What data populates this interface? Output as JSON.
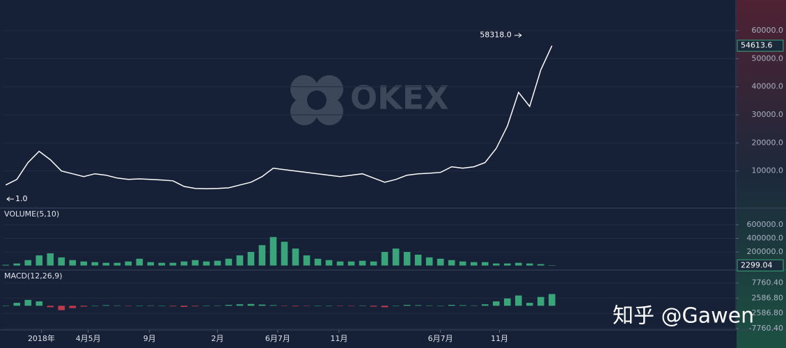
{
  "watermark": "OKEX",
  "signature": "知乎 @Gawen",
  "chart_data": [
    {
      "type": "line",
      "title": "",
      "x": [
        0,
        1,
        2,
        3,
        4,
        5,
        6,
        7,
        8,
        9,
        10,
        11,
        12,
        13,
        14,
        15,
        16,
        17,
        18,
        19,
        20,
        21,
        22,
        23,
        24,
        25,
        26,
        27,
        28,
        29,
        30,
        31,
        32,
        33,
        34,
        35,
        36,
        37,
        38,
        39,
        40,
        41,
        42,
        43,
        44,
        45,
        46,
        47,
        48,
        49
      ],
      "series": [
        {
          "name": "",
          "color": "#ffffff",
          "values": [
            5000,
            7000,
            13000,
            17000,
            14000,
            10000,
            9000,
            8000,
            9000,
            8500,
            7500,
            7000,
            7200,
            7000,
            6800,
            6500,
            4500,
            3800,
            3700,
            3800,
            4000,
            5000,
            6000,
            8000,
            11000,
            10500,
            10000,
            9500,
            9000,
            8500,
            8000,
            8500,
            9000,
            7500,
            6000,
            7000,
            8500,
            9000,
            9200,
            9500,
            11500,
            11000,
            11500,
            13000,
            18000,
            26000,
            38000,
            33000,
            46000,
            54613.6
          ]
        }
      ],
      "xlim": [
        -0.2,
        65.5
      ],
      "ylim": [
        -2970,
        70890
      ],
      "yticks": [
        {
          "value": 10000,
          "label": "10000.0"
        },
        {
          "value": 20000,
          "label": "20000.0"
        },
        {
          "value": 30000,
          "label": "30000.0"
        },
        {
          "value": 40000,
          "label": "40000.0"
        },
        {
          "value": 50000,
          "label": "50000.0"
        },
        {
          "value": 60000,
          "label": "60000.0"
        }
      ],
      "last": {
        "value": 54613.6,
        "label": "54613.6"
      },
      "max": {
        "value": 58318,
        "label": "58318.0"
      },
      "min": {
        "value": 1,
        "label": "1.0"
      }
    },
    {
      "type": "bar",
      "title": "VOLUME(5,10)",
      "x": [
        0,
        1,
        2,
        3,
        4,
        5,
        6,
        7,
        8,
        9,
        10,
        11,
        12,
        13,
        14,
        15,
        16,
        17,
        18,
        19,
        20,
        21,
        22,
        23,
        24,
        25,
        26,
        27,
        28,
        29,
        30,
        31,
        32,
        33,
        34,
        35,
        36,
        37,
        38,
        39,
        40,
        41,
        42,
        43,
        44,
        45,
        46,
        47,
        48,
        49
      ],
      "series": [
        {
          "name": "",
          "color": "#3aa57a",
          "values": [
            10000,
            30000,
            80000,
            150000,
            180000,
            120000,
            80000,
            60000,
            50000,
            40000,
            40000,
            60000,
            100000,
            50000,
            40000,
            40000,
            60000,
            80000,
            60000,
            70000,
            100000,
            150000,
            200000,
            300000,
            420000,
            350000,
            250000,
            150000,
            100000,
            80000,
            60000,
            60000,
            70000,
            60000,
            200000,
            250000,
            200000,
            160000,
            120000,
            100000,
            80000,
            60000,
            50000,
            50000,
            30000,
            30000,
            40000,
            30000,
            20000,
            2299.04
          ]
        }
      ],
      "xlim": [
        -0.2,
        65.5
      ],
      "ylim": [
        -56400,
        835900
      ],
      "yticks": [
        {
          "value": 200000,
          "label": "200000.0"
        },
        {
          "value": 400000,
          "label": "400000.0"
        },
        {
          "value": 600000,
          "label": "600000.0"
        }
      ],
      "last": {
        "value": 2299.04,
        "label": "2299.04"
      }
    },
    {
      "type": "bar",
      "title": "MACD(12,26,9)",
      "x": [
        0,
        1,
        2,
        3,
        4,
        5,
        6,
        7,
        8,
        9,
        10,
        11,
        12,
        13,
        14,
        15,
        16,
        17,
        18,
        19,
        20,
        21,
        22,
        23,
        24,
        25,
        26,
        27,
        28,
        29,
        30,
        31,
        32,
        33,
        34,
        35,
        36,
        37,
        38,
        39,
        40,
        41,
        42,
        43,
        44,
        45,
        46,
        47,
        48,
        49
      ],
      "series": [
        {
          "name": "",
          "color": "#3aa57a",
          "down_color": "#c0394a",
          "values": [
            0,
            1000,
            2000,
            1500,
            -500,
            -1500,
            -800,
            -300,
            0,
            200,
            100,
            -100,
            0,
            100,
            50,
            -200,
            -400,
            -200,
            0,
            100,
            300,
            500,
            600,
            400,
            200,
            -100,
            -200,
            -100,
            0,
            50,
            -100,
            -50,
            100,
            -300,
            -500,
            0,
            300,
            200,
            100,
            0,
            300,
            200,
            100,
            500,
            1500,
            2500,
            3500,
            1000,
            3000,
            4000
          ]
        }
      ],
      "xlim": [
        -0.2,
        65.5
      ],
      "ylim": [
        -8000,
        11950
      ],
      "yticks": [
        {
          "value": -7760.4,
          "label": "-7760.40"
        },
        {
          "value": -2586.8,
          "label": "-2586.80"
        },
        {
          "value": 2586.8,
          "label": "2586.80"
        },
        {
          "value": 7760.4,
          "label": "7760.40"
        }
      ],
      "xticks": [
        {
          "value": 3.2,
          "label": "2018年"
        },
        {
          "value": 7.4,
          "label": "4月5月"
        },
        {
          "value": 12.9,
          "label": "9月"
        },
        {
          "value": 19.0,
          "label": "2月"
        },
        {
          "value": 24.4,
          "label": "6月7月"
        },
        {
          "value": 29.9,
          "label": "11月"
        },
        {
          "value": 39.0,
          "label": "6月7月"
        },
        {
          "value": 44.3,
          "label": "11月"
        }
      ]
    }
  ]
}
